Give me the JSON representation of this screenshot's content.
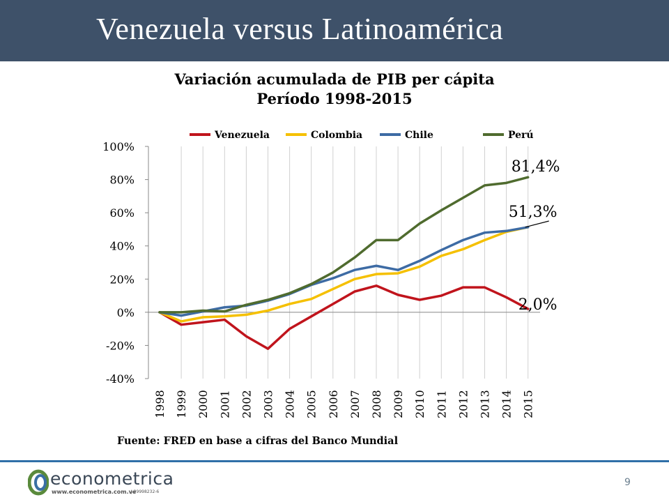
{
  "slide": {
    "title": "Venezuela versus Latinoamérica",
    "source": "Fuente: FRED en base a cifras del Banco Mundial",
    "page_number": "9"
  },
  "logo": {
    "name": "econometrica",
    "url": "www.econometrica.com.ve",
    "rif": "J-29998232-6"
  },
  "chart_data": {
    "type": "line",
    "title": "Variación acumulada de PIB per cápita",
    "subtitle": "Período 1998-2015",
    "x": [
      "1998",
      "1999",
      "2000",
      "2001",
      "2002",
      "2003",
      "2004",
      "2005",
      "2006",
      "2007",
      "2008",
      "2009",
      "2010",
      "2011",
      "2012",
      "2013",
      "2014",
      "2015"
    ],
    "ylim": [
      -40,
      100
    ],
    "yticks": [
      -40,
      -20,
      0,
      20,
      40,
      60,
      80,
      100
    ],
    "ytick_labels": [
      "-40%",
      "-20%",
      "0%",
      "20%",
      "40%",
      "60%",
      "80%",
      "100%"
    ],
    "grid": "vertical",
    "legend": "top",
    "series": [
      {
        "name": "Venezuela",
        "color": "#c0141c",
        "values": [
          0,
          -7.5,
          -6,
          -4.5,
          -14.5,
          -22,
          -10,
          -2.5,
          5,
          12.5,
          16,
          10.5,
          7.5,
          10,
          15,
          15,
          9,
          2.0
        ]
      },
      {
        "name": "Colombia",
        "color": "#f5c000",
        "values": [
          0,
          -5.5,
          -3,
          -2.5,
          -1.5,
          1,
          5,
          8,
          14,
          20,
          23,
          23.5,
          27.5,
          34,
          38,
          43.5,
          48.5,
          51.3
        ]
      },
      {
        "name": "Chile",
        "color": "#3d6ba4",
        "values": [
          0,
          -2,
          0.5,
          3,
          4,
          7,
          11,
          16.5,
          20.5,
          25.5,
          28,
          25.5,
          31,
          37.5,
          43.5,
          48,
          49,
          51.3
        ]
      },
      {
        "name": "Perú",
        "color": "#4f6b2e",
        "values": [
          0,
          0,
          1,
          0.5,
          4.5,
          7.5,
          11.5,
          17,
          24,
          33,
          43.5,
          43.5,
          53.5,
          61.5,
          69,
          76.5,
          78,
          81.4
        ]
      }
    ],
    "annotations": [
      {
        "text": "81,4%",
        "series": "Perú"
      },
      {
        "text": "51,3%",
        "series": "Chile"
      },
      {
        "text": "2,0%",
        "series": "Venezuela"
      }
    ]
  }
}
